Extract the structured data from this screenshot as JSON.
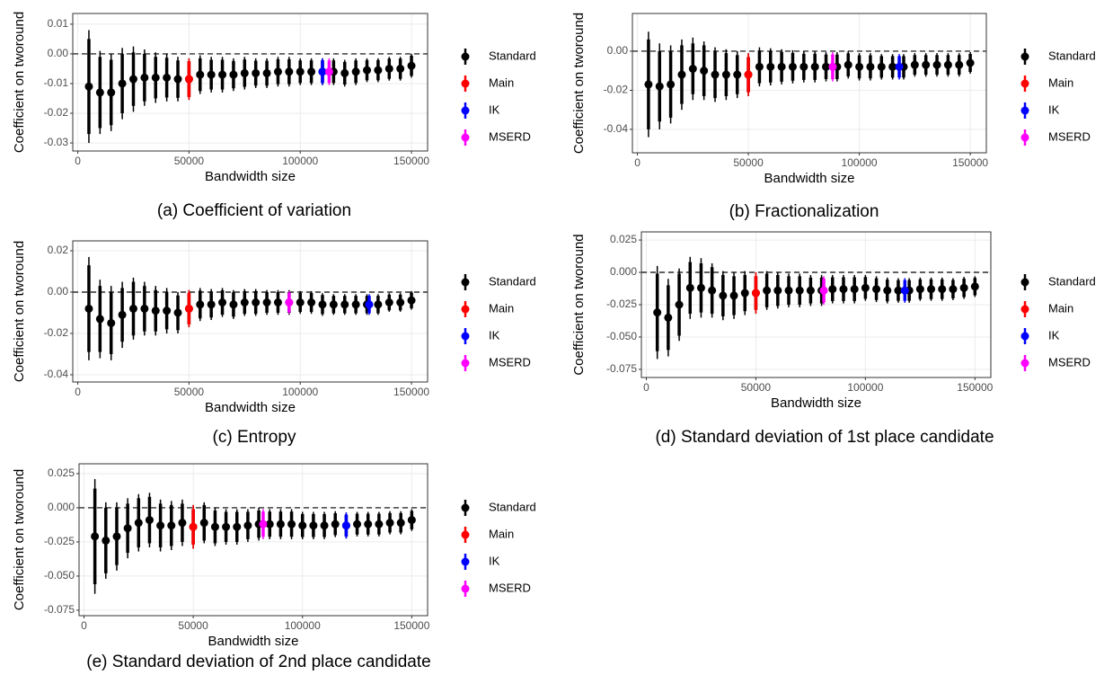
{
  "chart_data": [
    {
      "type": "pointrange",
      "title": "(a) Coefficient of variation",
      "x_label": "Bandwidth size",
      "y_label": "Coefficient on tworound",
      "xlim": [
        -2250,
        157250
      ],
      "ylim": [
        -0.0327,
        0.0136
      ],
      "xticks": [
        0,
        50000,
        100000,
        150000
      ],
      "yticks": [
        0.01,
        {
          "value": 0,
          "label": "0.00"
        },
        -0.01,
        -0.02,
        -0.03
      ],
      "hline": 0,
      "grid": true,
      "series": [
        {
          "name": "Standard",
          "color": "#000000",
          "x": [
            5000,
            10000,
            15000,
            20000,
            25000,
            30000,
            35000,
            40000,
            45000,
            50000,
            55000,
            60000,
            65000,
            70000,
            75000,
            80000,
            85000,
            90000,
            95000,
            100000,
            105000,
            110000,
            115000,
            120000,
            125000,
            130000,
            135000,
            140000,
            145000,
            150000
          ],
          "values": [
            -0.011,
            -0.013,
            -0.013,
            -0.01,
            -0.0085,
            -0.008,
            -0.008,
            -0.008,
            -0.0085,
            -0.0085,
            -0.007,
            -0.007,
            -0.007,
            -0.007,
            -0.0065,
            -0.0065,
            -0.0065,
            -0.006,
            -0.006,
            -0.006,
            -0.006,
            -0.006,
            -0.006,
            -0.0065,
            -0.006,
            -0.0055,
            -0.0055,
            -0.005,
            -0.005,
            -0.004
          ],
          "ci95": [
            0.019,
            0.014,
            0.013,
            0.012,
            0.011,
            0.0095,
            0.0085,
            0.008,
            0.0075,
            0.007,
            0.0065,
            0.006,
            0.006,
            0.0055,
            0.0055,
            0.005,
            0.005,
            0.005,
            0.005,
            0.0045,
            0.0045,
            0.0045,
            0.0045,
            0.0045,
            0.0045,
            0.004,
            0.004,
            0.004,
            0.004,
            0.004
          ],
          "ci90": [
            0.016,
            0.012,
            0.011,
            0.01,
            0.009,
            0.008,
            0.007,
            0.0067,
            0.0063,
            0.006,
            0.0055,
            0.005,
            0.005,
            0.0046,
            0.0046,
            0.0042,
            0.0042,
            0.0042,
            0.0042,
            0.0038,
            0.0038,
            0.0038,
            0.0038,
            0.0038,
            0.0038,
            0.0034,
            0.0034,
            0.0034,
            0.0034,
            0.0034
          ]
        },
        {
          "name": "Main",
          "color": "#ff0000",
          "x": [
            50000
          ],
          "values": [
            -0.0085
          ],
          "ci95": [
            0.007
          ],
          "ci90": [
            0.006
          ]
        },
        {
          "name": "IK",
          "color": "#0000ff",
          "x": [
            110000
          ],
          "values": [
            -0.006
          ],
          "ci95": [
            0.0045
          ],
          "ci90": [
            0.0038
          ]
        },
        {
          "name": "MSERD",
          "color": "#ff00ff",
          "x": [
            113000
          ],
          "values": [
            -0.006
          ],
          "ci95": [
            0.0045
          ],
          "ci90": [
            0.0038
          ]
        }
      ]
    },
    {
      "type": "pointrange",
      "title": "(b) Fractionalization",
      "x_label": "Bandwidth size",
      "y_label": "Coefficient on tworound",
      "xlim": [
        -2250,
        157250
      ],
      "ylim": [
        -0.052,
        0.0193
      ],
      "xticks": [
        0,
        50000,
        100000,
        150000
      ],
      "yticks": [
        {
          "value": 0,
          "label": "0.00"
        },
        -0.02,
        -0.04
      ],
      "hline": 0,
      "grid": true,
      "series": [
        {
          "name": "Standard",
          "color": "#000000",
          "x": [
            5000,
            10000,
            15000,
            20000,
            25000,
            30000,
            35000,
            40000,
            45000,
            50000,
            55000,
            60000,
            65000,
            70000,
            75000,
            80000,
            85000,
            90000,
            95000,
            100000,
            105000,
            110000,
            115000,
            120000,
            125000,
            130000,
            135000,
            140000,
            145000,
            150000
          ],
          "values": [
            -0.017,
            -0.018,
            -0.017,
            -0.012,
            -0.009,
            -0.01,
            -0.012,
            -0.012,
            -0.012,
            -0.012,
            -0.008,
            -0.008,
            -0.008,
            -0.008,
            -0.008,
            -0.008,
            -0.008,
            -0.008,
            -0.007,
            -0.008,
            -0.008,
            -0.008,
            -0.008,
            -0.008,
            -0.007,
            -0.007,
            -0.007,
            -0.007,
            -0.007,
            -0.006
          ],
          "ci95": [
            0.027,
            0.022,
            0.02,
            0.018,
            0.016,
            0.015,
            0.014,
            0.013,
            0.012,
            0.011,
            0.01,
            0.0095,
            0.009,
            0.0085,
            0.008,
            0.008,
            0.0075,
            0.0075,
            0.007,
            0.007,
            0.007,
            0.0065,
            0.0065,
            0.0065,
            0.006,
            0.006,
            0.006,
            0.006,
            0.006,
            0.0055
          ],
          "ci90": [
            0.023,
            0.018,
            0.017,
            0.015,
            0.013,
            0.013,
            0.012,
            0.011,
            0.01,
            0.009,
            0.0084,
            0.008,
            0.0076,
            0.0071,
            0.0067,
            0.0067,
            0.0063,
            0.0063,
            0.0059,
            0.0059,
            0.0059,
            0.0055,
            0.0055,
            0.0055,
            0.005,
            0.005,
            0.005,
            0.005,
            0.005,
            0.0046
          ]
        },
        {
          "name": "Main",
          "color": "#ff0000",
          "x": [
            50000
          ],
          "values": [
            -0.012
          ],
          "ci95": [
            0.011
          ],
          "ci90": [
            0.009
          ]
        },
        {
          "name": "IK",
          "color": "#0000ff",
          "x": [
            118000
          ],
          "values": [
            -0.008
          ],
          "ci95": [
            0.0065
          ],
          "ci90": [
            0.0055
          ]
        },
        {
          "name": "MSERD",
          "color": "#ff00ff",
          "x": [
            88000
          ],
          "values": [
            -0.008
          ],
          "ci95": [
            0.0075
          ],
          "ci90": [
            0.0063
          ]
        }
      ]
    },
    {
      "type": "pointrange",
      "title": "(c) Entropy",
      "x_label": "Bandwidth size",
      "y_label": "Coefficient on tworound",
      "xlim": [
        -2250,
        157250
      ],
      "ylim": [
        -0.0435,
        0.0248
      ],
      "xticks": [
        0,
        50000,
        100000,
        150000
      ],
      "yticks": [
        0.02,
        {
          "value": 0,
          "label": "0.00"
        },
        -0.02,
        -0.04
      ],
      "hline": 0,
      "grid": true,
      "series": [
        {
          "name": "Standard",
          "color": "#000000",
          "x": [
            5000,
            10000,
            15000,
            20000,
            25000,
            30000,
            35000,
            40000,
            45000,
            50000,
            55000,
            60000,
            65000,
            70000,
            75000,
            80000,
            85000,
            90000,
            95000,
            100000,
            105000,
            110000,
            115000,
            120000,
            125000,
            130000,
            135000,
            140000,
            145000,
            150000
          ],
          "values": [
            -0.008,
            -0.013,
            -0.015,
            -0.011,
            -0.008,
            -0.008,
            -0.009,
            -0.009,
            -0.01,
            -0.008,
            -0.006,
            -0.006,
            -0.005,
            -0.006,
            -0.005,
            -0.005,
            -0.005,
            -0.005,
            -0.005,
            -0.005,
            -0.005,
            -0.006,
            -0.006,
            -0.006,
            -0.006,
            -0.006,
            -0.006,
            -0.005,
            -0.005,
            -0.004
          ],
          "ci95": [
            0.025,
            0.019,
            0.018,
            0.016,
            0.015,
            0.013,
            0.012,
            0.011,
            0.01,
            0.009,
            0.008,
            0.0075,
            0.007,
            0.007,
            0.0065,
            0.0065,
            0.006,
            0.006,
            0.006,
            0.0055,
            0.0055,
            0.0055,
            0.005,
            0.005,
            0.005,
            0.005,
            0.005,
            0.0045,
            0.0045,
            0.0045
          ],
          "ci90": [
            0.021,
            0.016,
            0.015,
            0.013,
            0.013,
            0.011,
            0.01,
            0.009,
            0.0084,
            0.0076,
            0.0067,
            0.0063,
            0.0059,
            0.0059,
            0.0055,
            0.0055,
            0.005,
            0.005,
            0.005,
            0.0046,
            0.0046,
            0.0046,
            0.0042,
            0.0042,
            0.0042,
            0.0042,
            0.0042,
            0.0038,
            0.0038,
            0.0038
          ]
        },
        {
          "name": "Main",
          "color": "#ff0000",
          "x": [
            50000
          ],
          "values": [
            -0.008
          ],
          "ci95": [
            0.009
          ],
          "ci90": [
            0.0076
          ]
        },
        {
          "name": "IK",
          "color": "#0000ff",
          "x": [
            131000
          ],
          "values": [
            -0.006
          ],
          "ci95": [
            0.005
          ],
          "ci90": [
            0.0042
          ]
        },
        {
          "name": "MSERD",
          "color": "#ff00ff",
          "x": [
            95000
          ],
          "values": [
            -0.005
          ],
          "ci95": [
            0.0055
          ],
          "ci90": [
            0.0046
          ]
        }
      ]
    },
    {
      "type": "pointrange",
      "title": "(d) Standard deviation of 1st place candidate",
      "x_label": "Bandwidth size",
      "y_label": "Coefficient on tworound",
      "xlim": [
        -2250,
        157250
      ],
      "ylim": [
        -0.0813,
        0.0313
      ],
      "xticks": [
        0,
        50000,
        100000,
        150000
      ],
      "yticks": [
        0.025,
        {
          "value": 0,
          "label": "0.000"
        },
        -0.025,
        {
          "value": -0.05,
          "label": "-0.050"
        },
        -0.075
      ],
      "hline": 0,
      "grid": true,
      "series": [
        {
          "name": "Standard",
          "color": "#000000",
          "x": [
            5000,
            10000,
            15000,
            20000,
            25000,
            30000,
            35000,
            40000,
            45000,
            50000,
            55000,
            60000,
            65000,
            70000,
            75000,
            80000,
            85000,
            90000,
            95000,
            100000,
            105000,
            110000,
            115000,
            120000,
            125000,
            130000,
            135000,
            140000,
            145000,
            150000
          ],
          "values": [
            -0.031,
            -0.035,
            -0.025,
            -0.012,
            -0.012,
            -0.014,
            -0.018,
            -0.018,
            -0.016,
            -0.016,
            -0.014,
            -0.014,
            -0.014,
            -0.014,
            -0.014,
            -0.014,
            -0.013,
            -0.013,
            -0.013,
            -0.012,
            -0.013,
            -0.014,
            -0.014,
            -0.014,
            -0.013,
            -0.013,
            -0.013,
            -0.013,
            -0.012,
            -0.011
          ],
          "ci95": [
            0.036,
            0.03,
            0.028,
            0.024,
            0.023,
            0.021,
            0.019,
            0.018,
            0.017,
            0.016,
            0.015,
            0.014,
            0.013,
            0.013,
            0.012,
            0.012,
            0.011,
            0.011,
            0.011,
            0.01,
            0.01,
            0.01,
            0.0095,
            0.0095,
            0.009,
            0.009,
            0.009,
            0.0085,
            0.0085,
            0.008
          ],
          "ci90": [
            0.03,
            0.025,
            0.024,
            0.02,
            0.019,
            0.018,
            0.016,
            0.015,
            0.014,
            0.013,
            0.013,
            0.012,
            0.011,
            0.011,
            0.01,
            0.01,
            0.0092,
            0.0092,
            0.0092,
            0.0084,
            0.0084,
            0.0084,
            0.008,
            0.008,
            0.0076,
            0.0076,
            0.0076,
            0.0071,
            0.0071,
            0.0067
          ]
        },
        {
          "name": "Main",
          "color": "#ff0000",
          "x": [
            50000
          ],
          "values": [
            -0.016
          ],
          "ci95": [
            0.016
          ],
          "ci90": [
            0.013
          ]
        },
        {
          "name": "IK",
          "color": "#0000ff",
          "x": [
            118000
          ],
          "values": [
            -0.014
          ],
          "ci95": [
            0.0095
          ],
          "ci90": [
            0.008
          ]
        },
        {
          "name": "MSERD",
          "color": "#ff00ff",
          "x": [
            81000
          ],
          "values": [
            -0.014
          ],
          "ci95": [
            0.011
          ],
          "ci90": [
            0.0092
          ]
        }
      ]
    },
    {
      "type": "pointrange",
      "title": "(e) Standard deviation of 2nd place candidate",
      "x_label": "Bandwidth size",
      "y_label": "Coefficient on tworound",
      "xlim": [
        -2250,
        157250
      ],
      "ylim": [
        -0.079,
        0.0322
      ],
      "xticks": [
        0,
        50000,
        100000,
        150000
      ],
      "yticks": [
        0.025,
        {
          "value": 0,
          "label": "0.000"
        },
        -0.025,
        {
          "value": -0.05,
          "label": "-0.050"
        },
        -0.075
      ],
      "hline": 0,
      "grid": true,
      "series": [
        {
          "name": "Standard",
          "color": "#000000",
          "x": [
            5000,
            10000,
            15000,
            20000,
            25000,
            30000,
            35000,
            40000,
            45000,
            50000,
            55000,
            60000,
            65000,
            70000,
            75000,
            80000,
            85000,
            90000,
            95000,
            100000,
            105000,
            110000,
            115000,
            120000,
            125000,
            130000,
            135000,
            140000,
            145000,
            150000
          ],
          "values": [
            -0.021,
            -0.024,
            -0.021,
            -0.015,
            -0.011,
            -0.009,
            -0.013,
            -0.013,
            -0.011,
            -0.014,
            -0.011,
            -0.014,
            -0.014,
            -0.014,
            -0.013,
            -0.012,
            -0.012,
            -0.012,
            -0.012,
            -0.013,
            -0.013,
            -0.013,
            -0.012,
            -0.013,
            -0.012,
            -0.012,
            -0.012,
            -0.011,
            -0.011,
            -0.009
          ],
          "ci95": [
            0.042,
            0.028,
            0.025,
            0.022,
            0.021,
            0.02,
            0.019,
            0.018,
            0.017,
            0.016,
            0.015,
            0.014,
            0.013,
            0.013,
            0.012,
            0.012,
            0.011,
            0.011,
            0.011,
            0.01,
            0.01,
            0.01,
            0.0095,
            0.0095,
            0.009,
            0.009,
            0.009,
            0.0085,
            0.0085,
            0.008
          ],
          "ci90": [
            0.035,
            0.024,
            0.021,
            0.018,
            0.018,
            0.017,
            0.016,
            0.015,
            0.014,
            0.013,
            0.013,
            0.012,
            0.011,
            0.011,
            0.01,
            0.01,
            0.0092,
            0.0092,
            0.0092,
            0.0084,
            0.0084,
            0.0084,
            0.008,
            0.008,
            0.0076,
            0.0076,
            0.0076,
            0.0071,
            0.0071,
            0.0067
          ]
        },
        {
          "name": "Main",
          "color": "#ff0000",
          "x": [
            50000
          ],
          "values": [
            -0.014
          ],
          "ci95": [
            0.016
          ],
          "ci90": [
            0.013
          ]
        },
        {
          "name": "IK",
          "color": "#0000ff",
          "x": [
            120000
          ],
          "values": [
            -0.013
          ],
          "ci95": [
            0.0095
          ],
          "ci90": [
            0.008
          ]
        },
        {
          "name": "MSERD",
          "color": "#ff00ff",
          "x": [
            82000
          ],
          "values": [
            -0.012
          ],
          "ci95": [
            0.011
          ],
          "ci90": [
            0.0092
          ]
        }
      ]
    }
  ]
}
